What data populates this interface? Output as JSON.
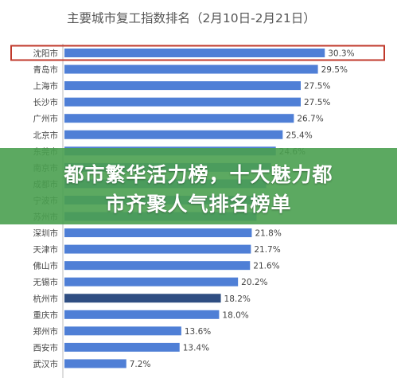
{
  "chart_data": {
    "type": "bar",
    "orientation": "horizontal",
    "title": "主要城市复工指数排名（2月10日-2月21日）",
    "categories": [
      "沈阳市",
      "青岛市",
      "上海市",
      "长沙市",
      "广州市",
      "北京市",
      "东莞市",
      "南京市",
      "成都市",
      "宁波市",
      "苏州市",
      "深圳市",
      "天津市",
      "佛山市",
      "无锡市",
      "杭州市",
      "重庆市",
      "郑州市",
      "西安市",
      "武汉市"
    ],
    "values": [
      30.3,
      29.5,
      27.5,
      27.5,
      26.7,
      25.4,
      24.6,
      null,
      null,
      null,
      null,
      21.8,
      21.7,
      21.6,
      20.2,
      18.2,
      18.0,
      13.6,
      13.4,
      7.2
    ],
    "value_labels": [
      "30.3%",
      "29.5%",
      "27.5%",
      "27.5%",
      "26.7%",
      "25.4%",
      "24.6%",
      "",
      "",
      "",
      "",
      "21.8%",
      "21.7%",
      "21.6%",
      "20.2%",
      "18.2%",
      "18.0%",
      "13.6%",
      "13.4%",
      "7.2%"
    ],
    "unit": "%",
    "highlighted_category": "沈阳市",
    "emphasized_category": "杭州市",
    "colors": {
      "bar": "#4f7fd6",
      "emphasized_bar": "#2f4e82",
      "highlight_box": "#c0392b",
      "axis": "#bbbbbb"
    },
    "legend": "none",
    "grid": false
  },
  "banner": {
    "line1": "都市繁华活力榜，十大魅力都",
    "line2": "市齐聚人气排名榜单",
    "color": "#4aa050"
  }
}
